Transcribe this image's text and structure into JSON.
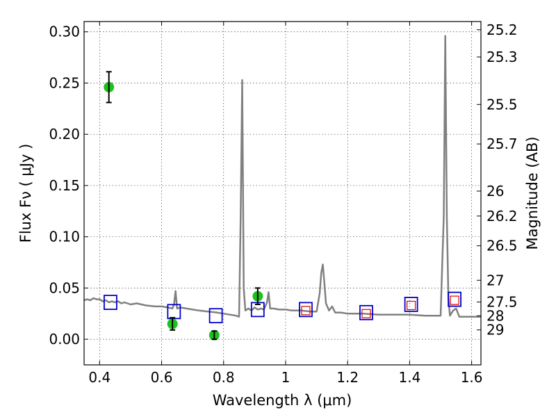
{
  "chart_data": {
    "type": "scatter",
    "xlabel": "Wavelength  λ (μm)",
    "ylabel": "Flux  Fν  ( μJy )",
    "ylabel_right": "Magnitude (AB)",
    "xlim": [
      0.35,
      1.63
    ],
    "ylim": [
      -0.025,
      0.31
    ],
    "grid": true,
    "x_ticks": [
      {
        "value": 0.4,
        "label": "0.4"
      },
      {
        "value": 0.6,
        "label": "0.6"
      },
      {
        "value": 0.8,
        "label": "0.8"
      },
      {
        "value": 1.0,
        "label": "1"
      },
      {
        "value": 1.2,
        "label": "1.2"
      },
      {
        "value": 1.4,
        "label": "1.4"
      },
      {
        "value": 1.6,
        "label": "1.6"
      }
    ],
    "y_ticks": [
      {
        "value": 0.0,
        "label": "0.00"
      },
      {
        "value": 0.05,
        "label": "0.05"
      },
      {
        "value": 0.1,
        "label": "0.10"
      },
      {
        "value": 0.15,
        "label": "0.15"
      },
      {
        "value": 0.2,
        "label": "0.20"
      },
      {
        "value": 0.25,
        "label": "0.25"
      },
      {
        "value": 0.3,
        "label": "0.30"
      }
    ],
    "right_ticks": [
      {
        "value": 25.2,
        "label": "25.2"
      },
      {
        "value": 25.3,
        "label": "25.3"
      },
      {
        "value": 25.5,
        "label": "25.5"
      },
      {
        "value": 25.7,
        "label": "25.7"
      },
      {
        "value": 26,
        "label": "26"
      },
      {
        "value": 26.2,
        "label": "26.2"
      },
      {
        "value": 26.5,
        "label": "26.5"
      },
      {
        "value": 27,
        "label": "27"
      },
      {
        "value": 27.5,
        "label": "27.5"
      },
      {
        "value": 28,
        "label": "28"
      },
      {
        "value": 29,
        "label": "29"
      }
    ],
    "series": [
      {
        "kind": "line",
        "color": "#808080",
        "x": [
          0.35,
          0.36,
          0.37,
          0.38,
          0.39,
          0.4,
          0.41,
          0.42,
          0.43,
          0.44,
          0.45,
          0.46,
          0.47,
          0.48,
          0.5,
          0.52,
          0.55,
          0.58,
          0.6,
          0.62,
          0.635,
          0.64,
          0.645,
          0.65,
          0.66,
          0.68,
          0.7,
          0.72,
          0.75,
          0.78,
          0.8,
          0.82,
          0.84,
          0.85,
          0.855,
          0.86,
          0.865,
          0.87,
          0.88,
          0.89,
          0.9,
          0.91,
          0.92,
          0.93,
          0.94,
          0.945,
          0.95,
          0.955,
          0.96,
          0.98,
          1.0,
          1.02,
          1.05,
          1.08,
          1.1,
          1.11,
          1.115,
          1.12,
          1.125,
          1.13,
          1.14,
          1.15,
          1.16,
          1.18,
          1.2,
          1.25,
          1.3,
          1.35,
          1.4,
          1.45,
          1.48,
          1.5,
          1.51,
          1.515,
          1.52,
          1.525,
          1.53,
          1.54,
          1.55,
          1.56,
          1.58,
          1.6,
          1.63
        ],
        "y": [
          0.038,
          0.039,
          0.038,
          0.04,
          0.039,
          0.039,
          0.037,
          0.038,
          0.036,
          0.037,
          0.036,
          0.037,
          0.035,
          0.036,
          0.034,
          0.035,
          0.033,
          0.032,
          0.032,
          0.031,
          0.03,
          0.034,
          0.047,
          0.03,
          0.031,
          0.03,
          0.029,
          0.028,
          0.027,
          0.026,
          0.025,
          0.024,
          0.023,
          0.022,
          0.12,
          0.253,
          0.05,
          0.028,
          0.03,
          0.028,
          0.031,
          0.029,
          0.03,
          0.029,
          0.036,
          0.046,
          0.03,
          0.03,
          0.03,
          0.029,
          0.029,
          0.028,
          0.028,
          0.027,
          0.027,
          0.045,
          0.065,
          0.073,
          0.055,
          0.035,
          0.028,
          0.032,
          0.026,
          0.026,
          0.025,
          0.025,
          0.024,
          0.024,
          0.024,
          0.023,
          0.023,
          0.023,
          0.12,
          0.296,
          0.12,
          0.04,
          0.023,
          0.028,
          0.03,
          0.022,
          0.022,
          0.022,
          0.022
        ]
      },
      {
        "kind": "points",
        "marker": "circle",
        "color": "#1fbf1f",
        "x": [
          0.43,
          0.635,
          0.77,
          0.91
        ],
        "y": [
          0.246,
          0.015,
          0.004,
          0.042
        ],
        "err": [
          0.015,
          0.006,
          0.004,
          0.008
        ]
      },
      {
        "kind": "points",
        "marker": "square",
        "color": "#0000cc",
        "x": [
          0.435,
          0.64,
          0.775,
          0.91,
          1.065,
          1.26,
          1.405,
          1.545
        ],
        "y": [
          0.036,
          0.027,
          0.023,
          0.029,
          0.029,
          0.026,
          0.034,
          0.039
        ]
      },
      {
        "kind": "points",
        "marker": "square-small",
        "color": "#dd0000",
        "x": [
          1.065,
          1.26,
          1.405,
          1.545
        ],
        "y": [
          0.028,
          0.025,
          0.033,
          0.038
        ]
      }
    ]
  }
}
